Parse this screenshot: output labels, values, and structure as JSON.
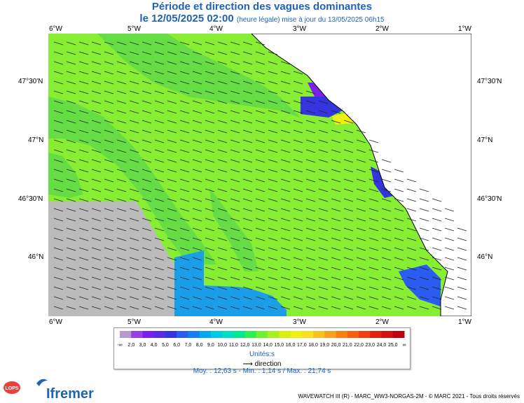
{
  "title": "Période et direction des vagues dominantes",
  "subtitle": {
    "date": "le 12/05/2025 02:00",
    "update": "(heure légale) mise à jour du 13/05/2025 06h15"
  },
  "axes": {
    "lon_top": [
      "6°W",
      "5°W",
      "4°W",
      "3°W",
      "2°W",
      "1°W"
    ],
    "lon_bottom": [
      "6°W",
      "5°W",
      "4°W",
      "3°W",
      "2°W",
      "1°W"
    ],
    "lat_left": [
      "47°30'N",
      "47°N",
      "46°30'N",
      "46°N"
    ],
    "lat_right": [
      "47°30'N",
      "47°N",
      "46°30'N",
      "46°N"
    ]
  },
  "legend": {
    "values": [
      "-∞",
      "2,0",
      "3,0",
      "4,0",
      "5,0",
      "6,0",
      "7,0",
      "8,0",
      "9,0",
      "10,0",
      "11,0",
      "12,0",
      "13,0",
      "14,0",
      "15,0",
      "16,0",
      "17,0",
      "18,0",
      "19,0",
      "20,0",
      "21,0",
      "22,0",
      "23,0",
      "24,0",
      "25,0",
      "∞"
    ],
    "colors": [
      "#b49ad0",
      "#9a3fe0",
      "#7a20f0",
      "#5a2ae8",
      "#3535e0",
      "#2a5cf0",
      "#1480f0",
      "#00a8f0",
      "#00c8e8",
      "#00e0c0",
      "#00e890",
      "#30f050",
      "#70f030",
      "#a8f020",
      "#d8f010",
      "#f0f010",
      "#f8e020",
      "#f8c020",
      "#f8a020",
      "#f88010",
      "#f86010",
      "#f04010",
      "#e02010",
      "#d01010",
      "#c00010"
    ],
    "unit": "Unités:s",
    "direction_label": "direction"
  },
  "stats": "Moy. : 12,63 s   -   Min. : 1,14 s / Max. : 21,74 s",
  "footer": "WAVEWATCH III (R) - MARC_WW3-NORGAS-2M - © MARC 2021 - Tous droits réservés",
  "logos": {
    "lops": "LOPS",
    "ifremer": "Ifremer"
  },
  "map_colors": {
    "main_green": "#88ee33",
    "light_green": "#66dd44",
    "blue": "#1a9ee8",
    "purple": "#7a20f0",
    "land": "#ffffff",
    "nodata": "#bbbbbb"
  }
}
